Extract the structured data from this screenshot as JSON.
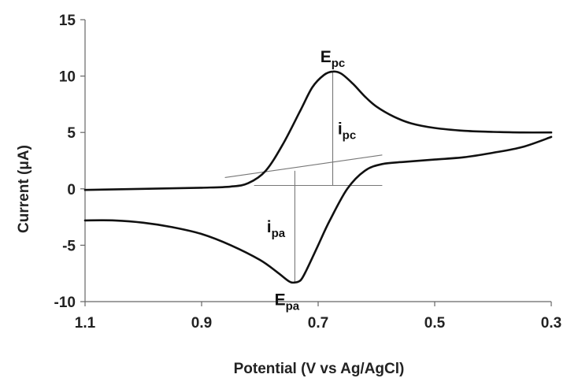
{
  "chart_data": {
    "type": "line",
    "xlabel": "Potential (V vs Ag/AgCl)",
    "ylabel": "Current (μA)",
    "xlim": [
      1.1,
      0.3
    ],
    "ylim": [
      -10,
      15
    ],
    "x_reversed": true,
    "grid": false,
    "xticks": [
      "1.1",
      "0.9",
      "0.7",
      "0.5",
      "0.3"
    ],
    "yticks": [
      "15",
      "10",
      "5",
      "0",
      "-5",
      "-10"
    ],
    "series": [
      {
        "values_x": [
          1.1,
          1.0,
          0.9,
          0.85,
          0.82,
          0.79,
          0.76,
          0.73,
          0.71,
          0.69,
          0.675,
          0.66,
          0.64,
          0.62,
          0.6,
          0.57,
          0.54,
          0.5,
          0.45,
          0.4,
          0.35,
          0.3
        ],
        "values_y": [
          -0.1,
          0.0,
          0.1,
          0.2,
          0.5,
          1.6,
          4.0,
          7.0,
          9.0,
          10.1,
          10.4,
          10.2,
          9.3,
          8.2,
          7.3,
          6.4,
          5.8,
          5.4,
          5.15,
          5.05,
          5.0,
          5.0
        ]
      },
      {
        "values_x": [
          0.3,
          0.35,
          0.4,
          0.45,
          0.5,
          0.55,
          0.59,
          0.62,
          0.65,
          0.68,
          0.7,
          0.72,
          0.73,
          0.74,
          0.75,
          0.77,
          0.8,
          0.85,
          0.9,
          0.95,
          1.0,
          1.05,
          1.1
        ],
        "values_y": [
          4.6,
          3.7,
          3.2,
          2.8,
          2.6,
          2.4,
          2.2,
          1.6,
          0.0,
          -2.8,
          -5.0,
          -7.2,
          -8.1,
          -8.3,
          -8.2,
          -7.4,
          -6.3,
          -5.0,
          -4.0,
          -3.4,
          -3.0,
          -2.8,
          -2.8
        ]
      }
    ],
    "guides": {
      "baseline_cathodic": {
        "x": [
          0.86,
          0.59
        ],
        "y": [
          1.0,
          3.0
        ]
      },
      "baseline_anodic": {
        "x": [
          0.81,
          0.59
        ],
        "y": [
          0.3,
          0.3
        ]
      },
      "ipc_line": {
        "x": 0.675,
        "y": [
          0.3,
          10.4
        ]
      },
      "ipa_line": {
        "x": 0.74,
        "y": [
          1.6,
          -8.3
        ]
      }
    },
    "annotations": [
      {
        "main": "E",
        "sub": "pc",
        "x": 0.675,
        "y": 10.4
      },
      {
        "main": "i",
        "sub": "pc",
        "x": 0.675,
        "y": 5.4
      },
      {
        "main": "i",
        "sub": "pa",
        "x": 0.74,
        "y": -3.3
      },
      {
        "main": "E",
        "sub": "pa",
        "x": 0.74,
        "y": -8.3
      }
    ]
  }
}
